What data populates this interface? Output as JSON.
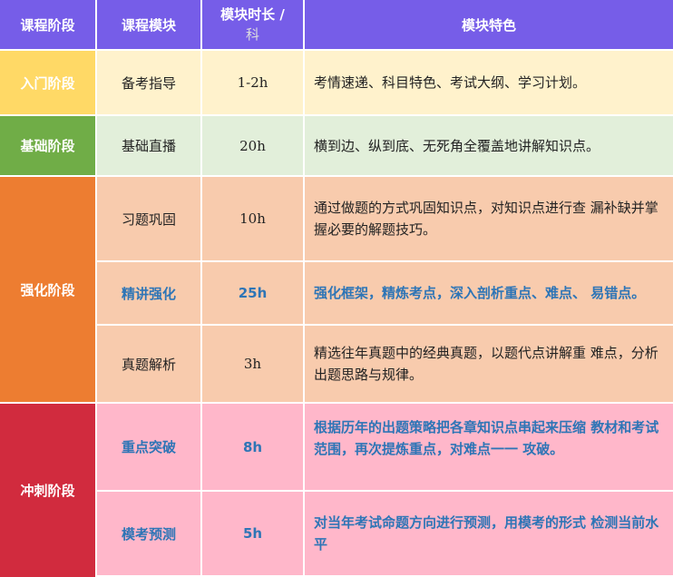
{
  "header": {
    "stage": "课程阶段",
    "module": "课程模块",
    "duration_line1": "模块时长 /",
    "duration_line2": "科",
    "feature": "模块特色"
  },
  "colors": {
    "header": "#765DE8",
    "intro": "#FFD966",
    "basic": "#70AD47",
    "strengthen": "#ED7D31",
    "sprint": "#D12B3E",
    "highlight_text": "#2E75B6"
  },
  "stages": [
    {
      "name": "入门阶段",
      "modules": [
        {
          "module": "备考指导",
          "duration": "1-2h",
          "feature": "考情速递、科目特色、考试大纲、学习计划。"
        }
      ]
    },
    {
      "name": "基础阶段",
      "modules": [
        {
          "module": "基础直播",
          "duration": "20h",
          "feature": "横到边、纵到底、无死角全覆盖地讲解知识点。"
        }
      ]
    },
    {
      "name": "强化阶段",
      "modules": [
        {
          "module": "习题巩固",
          "duration": "10h",
          "feature": "通过做题的方式巩固知识点，对知识点进行查 漏补缺并掌握必要的解题技巧。"
        },
        {
          "module": "精讲强化",
          "duration": "25h",
          "feature": "强化框架，精炼考点，深入剖析重点、难点、 易错点。"
        },
        {
          "module": "真题解析",
          "duration": "3h",
          "feature": "精选往年真题中的经典真题，以题代点讲解重 难点，分析出题思路与规律。"
        }
      ]
    },
    {
      "name": "冲刺阶段",
      "modules": [
        {
          "module": "重点突破",
          "duration": "8h",
          "feature": "根据历年的出题策略把各章知识点串起来压缩 教材和考试范围，再次提炼重点，对难点一一 攻破。"
        },
        {
          "module": "模考预测",
          "duration": "5h",
          "feature": "对当年考试命题方向进行预测，用模考的形式 检测当前水平"
        }
      ]
    }
  ]
}
